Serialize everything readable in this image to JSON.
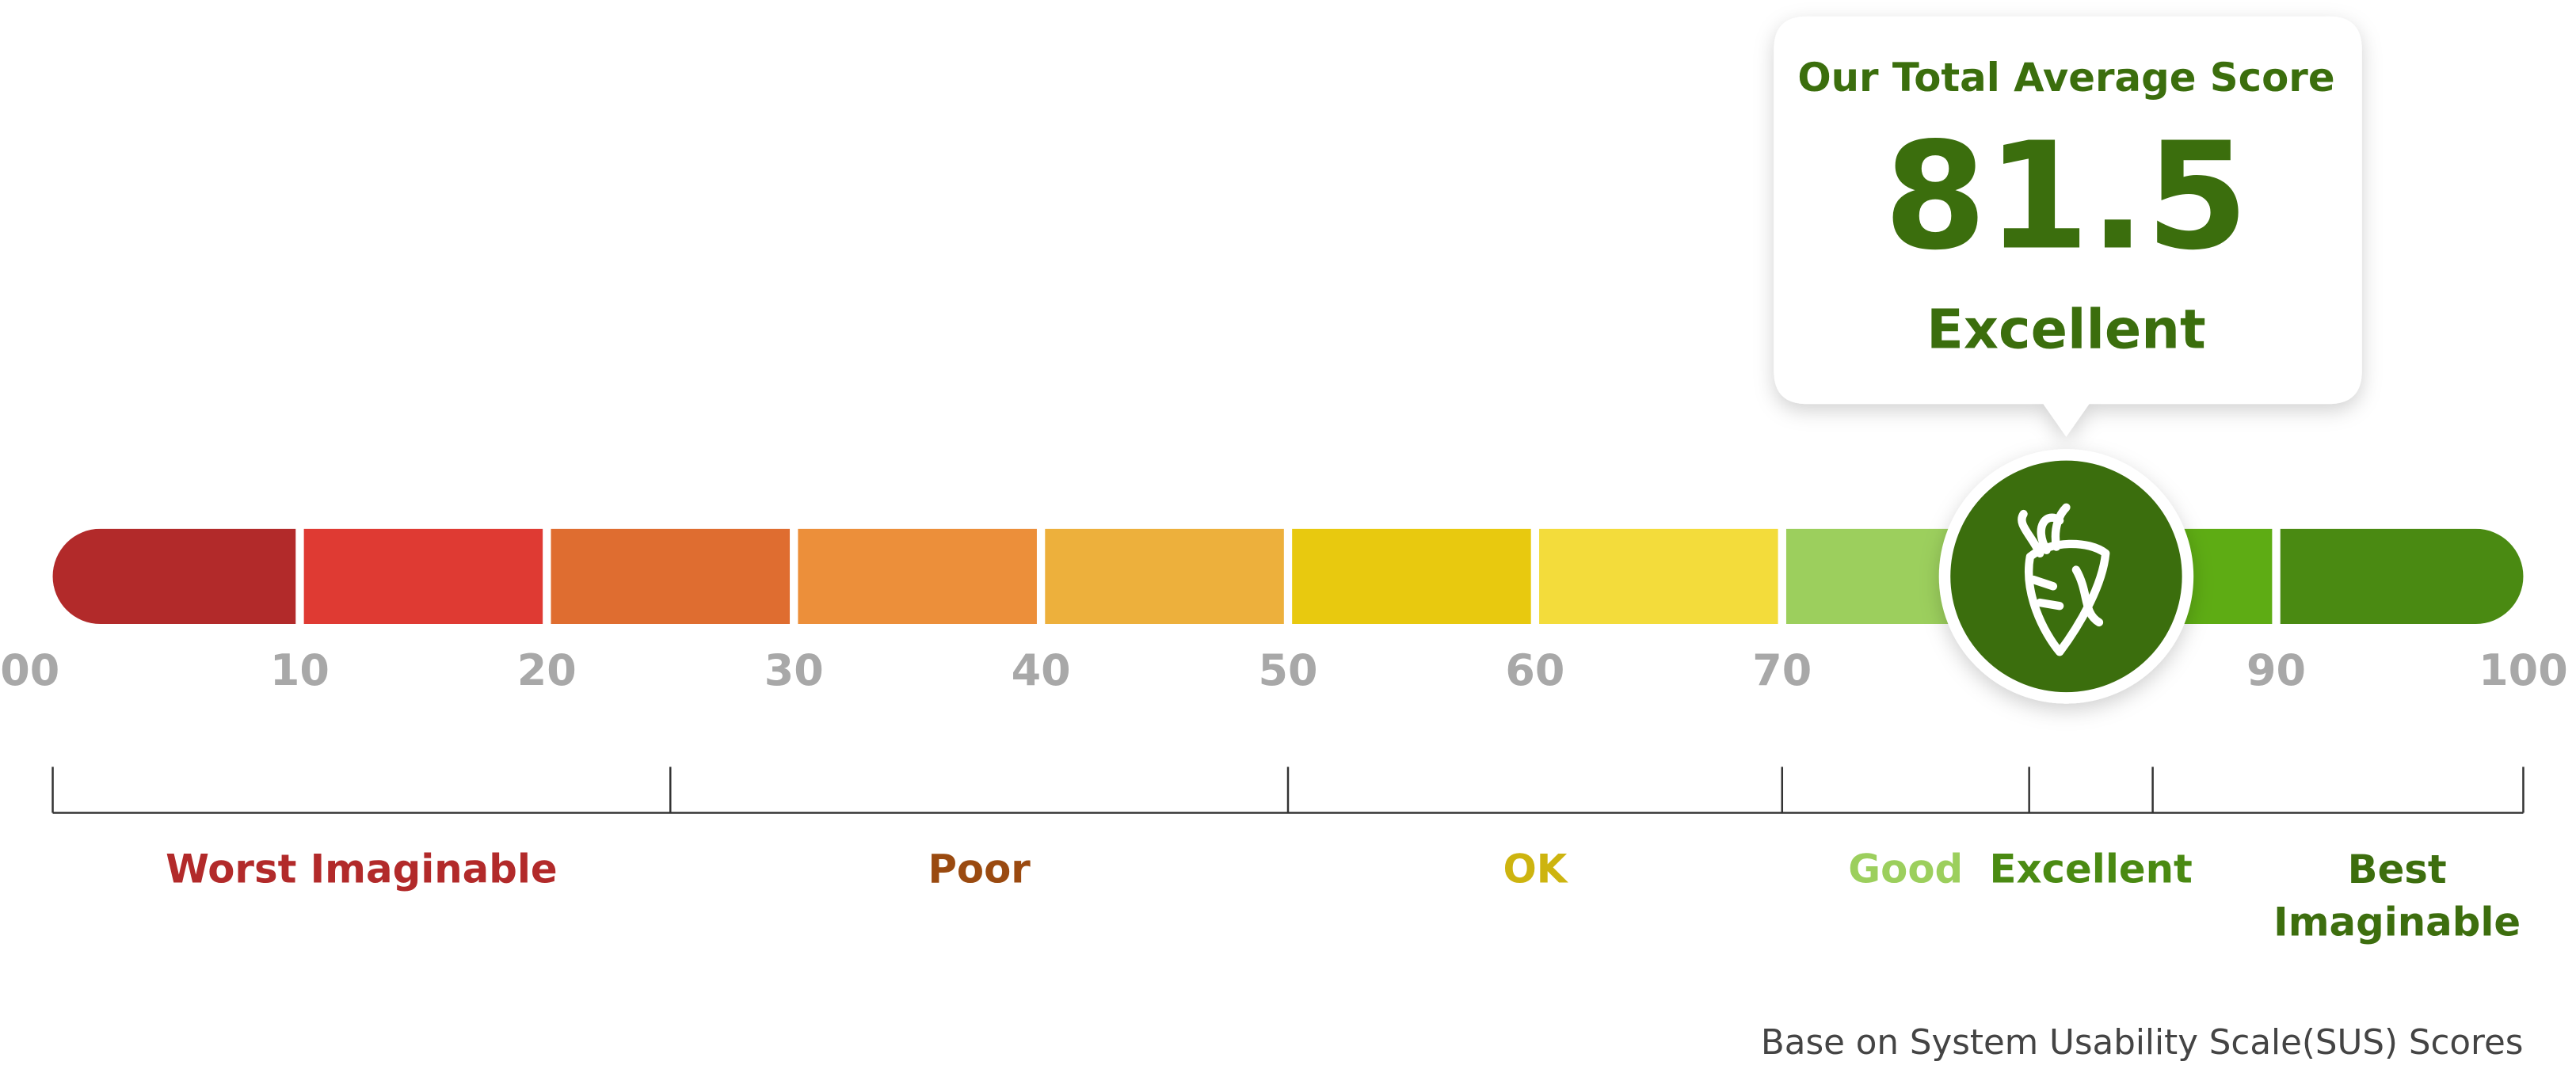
{
  "callout": {
    "title": "Our Total Average Score",
    "score": 81.5,
    "rating": "Excellent"
  },
  "scale": {
    "lim": [
      0,
      100
    ],
    "ticks": [
      {
        "value": 0,
        "label": "00"
      },
      10,
      20,
      30,
      40,
      50,
      60,
      70,
      90,
      100
    ],
    "segments": [
      {
        "from": 0,
        "to": 10,
        "color": "#b22a2a"
      },
      {
        "from": 10,
        "to": 20,
        "color": "#df3a33"
      },
      {
        "from": 20,
        "to": 30,
        "color": "#df6d30"
      },
      {
        "from": 30,
        "to": 40,
        "color": "#ec8f3a"
      },
      {
        "from": 40,
        "to": 50,
        "color": "#edb03c"
      },
      {
        "from": 50,
        "to": 60,
        "color": "#e8c90f"
      },
      {
        "from": 60,
        "to": 70,
        "color": "#f3dc3b"
      },
      {
        "from": 70,
        "to": 80,
        "color": "#9ccf5d"
      },
      {
        "from": 80,
        "to": 90,
        "color": "#5eac14"
      },
      {
        "from": 90,
        "to": 100,
        "color": "#4a8a12"
      }
    ],
    "ranges": [
      {
        "label": "Worst Imaginable",
        "from": 0,
        "to": 25,
        "color": "#b22a2a"
      },
      {
        "label": "Poor",
        "from": 25,
        "to": 50,
        "color": "#9a4a10"
      },
      {
        "label": "OK",
        "from": 50,
        "to": 70,
        "color": "#cdb40f"
      },
      {
        "label": "Good",
        "from": 70,
        "to": 80,
        "color": "#9ccf5d"
      },
      {
        "label": "Excellent",
        "from": 80,
        "to": 85,
        "color": "#4a8a12"
      },
      {
        "label": [
          "Best",
          "Imaginable"
        ],
        "from": 85,
        "to": 100,
        "color": "#3d6e0e"
      }
    ],
    "note": "Base on System Usability Scale(SUS) Scores"
  }
}
